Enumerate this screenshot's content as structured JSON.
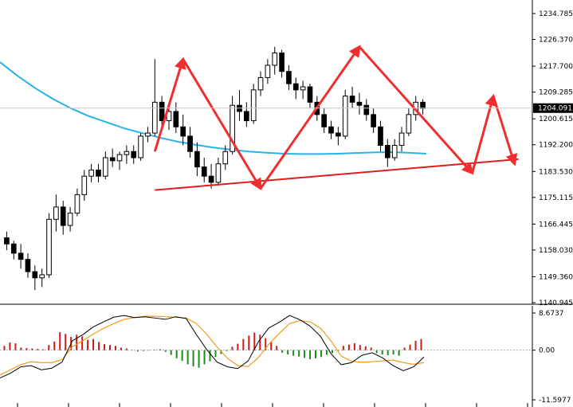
{
  "chart_data": [
    {
      "type": "candlestick",
      "title": "",
      "yticks": [
        "1234.785",
        "1226.370",
        "1217.700",
        "1209.285",
        "1200.615",
        "1192.200",
        "1183.530",
        "1175.115",
        "1166.445",
        "1158.030",
        "1149.360",
        "1140.945"
      ],
      "ylim": [
        1140.945,
        1234.785
      ],
      "current_price": "1204.091",
      "current_price_value": 1204.091,
      "moving_average": {
        "color": "#27b3e8",
        "values": [
          1219.0,
          1214.5,
          1210.5,
          1207.0,
          1204.0,
          1201.5,
          1199.5,
          1197.5,
          1196.0,
          1194.5,
          1193.2,
          1192.2,
          1191.3,
          1190.6,
          1190.0,
          1189.6,
          1189.3,
          1189.2,
          1189.2,
          1189.3,
          1189.5,
          1189.7,
          1189.8,
          1189.6,
          1189.3
        ]
      },
      "candles": [
        [
          1162,
          1164,
          1158,
          1160
        ],
        [
          1160,
          1161,
          1155,
          1157
        ],
        [
          1157,
          1160,
          1152,
          1155
        ],
        [
          1155,
          1157,
          1149,
          1151
        ],
        [
          1151,
          1153,
          1145,
          1149
        ],
        [
          1149,
          1152,
          1146,
          1150
        ],
        [
          1150,
          1170,
          1149,
          1168
        ],
        [
          1168,
          1176,
          1164,
          1172
        ],
        [
          1172,
          1174,
          1163,
          1166
        ],
        [
          1166,
          1172,
          1164,
          1170
        ],
        [
          1170,
          1178,
          1169,
          1176
        ],
        [
          1176,
          1184,
          1174,
          1182
        ],
        [
          1182,
          1186,
          1180,
          1184
        ],
        [
          1184,
          1186,
          1180,
          1182
        ],
        [
          1182,
          1190,
          1181,
          1188
        ],
        [
          1188,
          1191,
          1185,
          1187
        ],
        [
          1187,
          1190,
          1184,
          1189
        ],
        [
          1189,
          1192,
          1186,
          1190
        ],
        [
          1190,
          1192,
          1186,
          1188
        ],
        [
          1188,
          1196,
          1187,
          1195
        ],
        [
          1195,
          1198,
          1193,
          1196
        ],
        [
          1196,
          1220,
          1195,
          1206
        ],
        [
          1206,
          1208,
          1198,
          1200
        ],
        [
          1200,
          1205,
          1197,
          1203
        ],
        [
          1203,
          1206,
          1196,
          1198
        ],
        [
          1198,
          1202,
          1192,
          1195
        ],
        [
          1195,
          1198,
          1188,
          1190
        ],
        [
          1190,
          1193,
          1182,
          1185
        ],
        [
          1185,
          1188,
          1180,
          1182
        ],
        [
          1182,
          1186,
          1178,
          1180
        ],
        [
          1180,
          1188,
          1179,
          1186
        ],
        [
          1186,
          1192,
          1184,
          1190
        ],
        [
          1190,
          1208,
          1189,
          1205
        ],
        [
          1205,
          1210,
          1200,
          1203
        ],
        [
          1203,
          1206,
          1198,
          1200
        ],
        [
          1200,
          1212,
          1199,
          1210
        ],
        [
          1210,
          1216,
          1208,
          1214
        ],
        [
          1214,
          1220,
          1212,
          1218
        ],
        [
          1218,
          1224,
          1215,
          1222
        ],
        [
          1222,
          1223,
          1214,
          1216
        ],
        [
          1216,
          1218,
          1210,
          1212
        ],
        [
          1212,
          1214,
          1207,
          1210
        ],
        [
          1210,
          1213,
          1207,
          1211
        ],
        [
          1211,
          1212,
          1204,
          1206
        ],
        [
          1206,
          1208,
          1200,
          1202
        ],
        [
          1202,
          1204,
          1196,
          1198
        ],
        [
          1198,
          1200,
          1194,
          1196
        ],
        [
          1196,
          1198,
          1192,
          1195
        ],
        [
          1195,
          1210,
          1194,
          1208
        ],
        [
          1208,
          1211,
          1204,
          1206
        ],
        [
          1206,
          1209,
          1202,
          1205
        ],
        [
          1205,
          1207,
          1200,
          1202
        ],
        [
          1202,
          1204,
          1196,
          1198
        ],
        [
          1198,
          1200,
          1190,
          1192
        ],
        [
          1192,
          1194,
          1185,
          1188
        ],
        [
          1188,
          1194,
          1187,
          1192
        ],
        [
          1192,
          1198,
          1190,
          1196
        ],
        [
          1196,
          1204,
          1195,
          1202
        ],
        [
          1202,
          1208,
          1200,
          1206
        ],
        [
          1206,
          1207,
          1202,
          1204
        ]
      ],
      "support_line": {
        "color": "#e01d1d",
        "start": [
          7,
          1177.5
        ],
        "end": [
          59,
          1187.5
        ]
      },
      "zigzag_arrows": [
        [
          [
            0,
            1190
          ],
          [
            4,
            1220
          ]
        ],
        [
          [
            4,
            1220
          ],
          [
            15,
            1178
          ]
        ],
        [
          [
            15,
            1178
          ],
          [
            29,
            1224
          ]
        ],
        [
          [
            29,
            1224
          ],
          [
            45,
            1183
          ]
        ],
        [
          [
            45,
            1183
          ],
          [
            48,
            1208
          ]
        ],
        [
          [
            48,
            1208
          ],
          [
            51,
            1186
          ]
        ]
      ],
      "zigzag_color": "#ef2f2f",
      "zigzag_x_offset": 21
    },
    {
      "type": "macd",
      "yticks": [
        "8.6737",
        "0.00",
        "-11.5977"
      ],
      "ylim": [
        -11.5977,
        8.6737
      ],
      "histogram": [
        1.0,
        1.8,
        1.6,
        0.6,
        0.5,
        0.4,
        0.3,
        0.2,
        1.2,
        2.0,
        4.2,
        3.8,
        3.1,
        3.6,
        3.2,
        2.4,
        2.6,
        1.9,
        1.4,
        1.2,
        1.0,
        0.6,
        0.4,
        -0.1,
        -0.3,
        -0.2,
        -0.1,
        0.1,
        0.2,
        -0.4,
        -1.1,
        -1.9,
        -2.5,
        -3.3,
        -3.8,
        -4.1,
        -3.3,
        -2.6,
        -1.6,
        -0.9,
        -0.2,
        0.8,
        1.5,
        2.6,
        3.4,
        4.1,
        3.6,
        2.8,
        1.9,
        1.0,
        -0.6,
        -1.0,
        -1.3,
        -1.5,
        -1.8,
        -2.1,
        -1.9,
        -1.6,
        -1.1,
        -0.7,
        -0.2,
        1.0,
        1.3,
        1.6,
        1.2,
        0.9,
        0.6,
        -0.7,
        -1.0,
        -1.2,
        -1.0,
        -1.3,
        0.6,
        1.3,
        2.2,
        2.6
      ],
      "macd_line": [
        -6.5,
        -5.4,
        -3.9,
        -3.6,
        -4.6,
        -4.2,
        -2.8,
        2.2,
        3.6,
        5.4,
        6.6,
        7.7,
        8.1,
        7.6,
        7.8,
        7.5,
        7.2,
        7.8,
        7.4,
        3.6,
        0.1,
        -2.8,
        -3.9,
        -4.3,
        -2.5,
        2.0,
        5.2,
        6.5,
        8.1,
        7.1,
        5.6,
        3.2,
        -0.8,
        -3.4,
        -2.9,
        -1.2,
        -0.6,
        -1.8,
        -3.6,
        -4.8,
        -3.9,
        -1.6
      ],
      "signal_line": [
        -5.8,
        -4.6,
        -3.4,
        -2.7,
        -2.9,
        -2.9,
        -2.2,
        0.8,
        2.2,
        3.7,
        5.1,
        6.2,
        7.2,
        7.6,
        7.9,
        7.9,
        7.8,
        7.7,
        7.5,
        6.2,
        3.7,
        0.7,
        -1.9,
        -3.6,
        -3.8,
        -1.7,
        1.4,
        3.9,
        6.2,
        6.9,
        6.6,
        5.1,
        2.2,
        -1.4,
        -2.6,
        -2.8,
        -2.7,
        -2.5,
        -2.3,
        -2.9,
        -3.3,
        -2.9
      ],
      "macd_color": "#000000",
      "signal_color": "#f29a1e",
      "hist_up_color": "#cc1b1b",
      "hist_down_color": "#1f8a1f"
    }
  ]
}
